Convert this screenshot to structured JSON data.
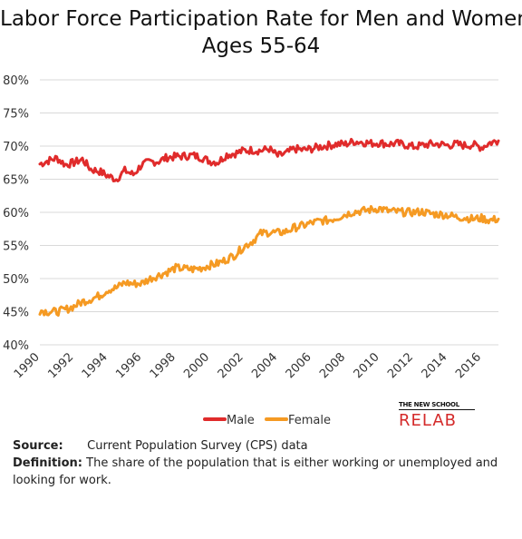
{
  "header": {
    "title_line1": "Labor Force Participation Rate for Men and Women",
    "title_line2": "Ages 55-64"
  },
  "logo": {
    "top": "THE NEW SCHOOL",
    "bottom": "RELAB"
  },
  "notes": {
    "source_label": "Source:",
    "source_text": "Current Population Survey (CPS) data",
    "definition_label": "Definition:",
    "definition_text": "The share of the population that is either working or unemployed and looking for work."
  },
  "colors": {
    "male": "#e02b2b",
    "female": "#f59a23",
    "grid": "#d9d9d9"
  },
  "chart_data": {
    "type": "line",
    "title": "Labor Force Participation Rate for Men and Women Ages 55-64",
    "xlabel": "",
    "ylabel": "",
    "x_range": [
      1990,
      2017
    ],
    "ylim": [
      40,
      80
    ],
    "y_ticks": [
      "40%",
      "45%",
      "50%",
      "55%",
      "60%",
      "65%",
      "70%",
      "75%",
      "80%"
    ],
    "x_ticks": [
      "1990",
      "1992",
      "1994",
      "1996",
      "1998",
      "2000",
      "2002",
      "2004",
      "2006",
      "2008",
      "2010",
      "2012",
      "2014",
      "2016"
    ],
    "grid": true,
    "legend": "bottom-center",
    "series": [
      {
        "name": "Male",
        "color": "#e02b2b",
        "x": [
          1990,
          1990.5,
          1991,
          1991.5,
          1992,
          1992.5,
          1993,
          1993.5,
          1994,
          1994.5,
          1995,
          1995.5,
          1996,
          1996.5,
          1997,
          1997.5,
          1998,
          1998.5,
          1999,
          1999.5,
          2000,
          2000.5,
          2001,
          2001.5,
          2002,
          2002.5,
          2003,
          2003.5,
          2004,
          2004.5,
          2005,
          2005.5,
          2006,
          2006.5,
          2007,
          2007.5,
          2008,
          2008.5,
          2009,
          2009.5,
          2010,
          2010.5,
          2011,
          2011.5,
          2012,
          2012.5,
          2013,
          2013.5,
          2014,
          2014.5,
          2015,
          2015.5,
          2016,
          2016.5,
          2017
        ],
        "values": [
          67.3,
          67.8,
          68.2,
          67.2,
          67.5,
          68.0,
          66.5,
          66.2,
          65.5,
          65.0,
          66.3,
          65.7,
          67.2,
          67.6,
          67.7,
          68.3,
          68.4,
          68.5,
          68.6,
          68.3,
          67.7,
          67.6,
          68.7,
          68.9,
          69.3,
          69.4,
          69.3,
          69.6,
          68.5,
          68.9,
          69.6,
          69.4,
          69.6,
          69.9,
          70.1,
          70.3,
          70.3,
          70.7,
          70.6,
          70.4,
          70.5,
          70.3,
          70.4,
          70.2,
          69.9,
          70.1,
          70.3,
          70.3,
          70.1,
          70.3,
          70.1,
          70.2,
          69.8,
          70.5,
          70.8
        ]
      },
      {
        "name": "Female",
        "color": "#f59a23",
        "x": [
          1990,
          1990.5,
          1991,
          1991.5,
          1992,
          1992.5,
          1993,
          1993.5,
          1994,
          1994.5,
          1995,
          1995.5,
          1996,
          1996.5,
          1997,
          1997.5,
          1998,
          1998.5,
          1999,
          1999.5,
          2000,
          2000.5,
          2001,
          2001.5,
          2002,
          2002.5,
          2003,
          2003.5,
          2004,
          2004.5,
          2005,
          2005.5,
          2006,
          2006.5,
          2007,
          2007.5,
          2008,
          2008.5,
          2009,
          2009.5,
          2010,
          2010.5,
          2011,
          2011.5,
          2012,
          2012.5,
          2013,
          2013.5,
          2014,
          2014.5,
          2015,
          2015.5,
          2016,
          2016.5,
          2017
        ],
        "values": [
          45.2,
          45.0,
          45.0,
          45.3,
          45.8,
          46.5,
          46.9,
          47.4,
          48.3,
          48.6,
          49.4,
          49.2,
          49.3,
          50.0,
          50.5,
          51.0,
          51.6,
          51.5,
          51.4,
          51.6,
          52.0,
          52.3,
          52.9,
          53.6,
          54.8,
          55.6,
          56.8,
          57.0,
          56.9,
          57.1,
          57.7,
          58.0,
          58.4,
          58.7,
          58.8,
          59.2,
          59.7,
          60.1,
          60.2,
          60.4,
          60.6,
          60.2,
          60.1,
          60.0,
          60.0,
          60.1,
          59.8,
          59.7,
          59.6,
          59.3,
          59.2,
          59.0,
          59.1,
          58.8,
          59.0
        ]
      }
    ]
  }
}
